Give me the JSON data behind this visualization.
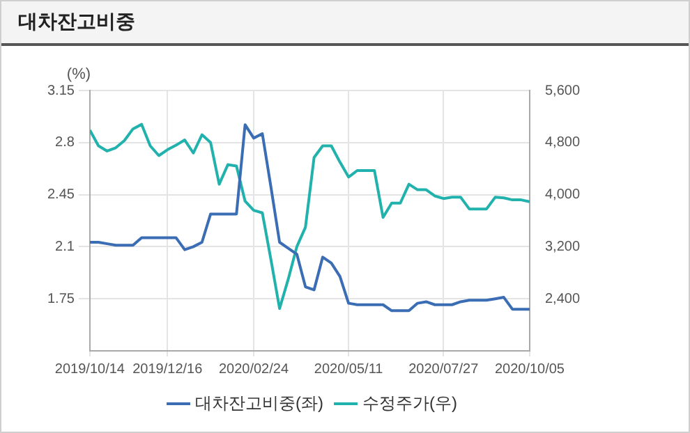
{
  "chart_data": {
    "type": "line",
    "title": "대차잔고비중",
    "ylabel": "(%)",
    "x": [
      "2019-10-14",
      "2019-10-21",
      "2019-10-28",
      "2019-11-04",
      "2019-11-11",
      "2019-11-18",
      "2019-11-25",
      "2019-12-02",
      "2019-12-09",
      "2019-12-16",
      "2019-12-23",
      "2019-12-30",
      "2020-01-06",
      "2020-01-13",
      "2020-01-20",
      "2020-01-27",
      "2020-02-03",
      "2020-02-10",
      "2020-02-17",
      "2020-02-24",
      "2020-03-02",
      "2020-03-09",
      "2020-03-16",
      "2020-03-23",
      "2020-03-30",
      "2020-04-06",
      "2020-04-13",
      "2020-04-20",
      "2020-04-27",
      "2020-05-04",
      "2020-05-11",
      "2020-05-18",
      "2020-05-25",
      "2020-06-01",
      "2020-06-08",
      "2020-06-15",
      "2020-06-22",
      "2020-06-29",
      "2020-07-06",
      "2020-07-13",
      "2020-07-20",
      "2020-07-27",
      "2020-08-03",
      "2020-08-10",
      "2020-08-17",
      "2020-08-24",
      "2020-08-31",
      "2020-09-07",
      "2020-09-14",
      "2020-09-21",
      "2020-09-28",
      "2020-10-05"
    ],
    "series": [
      {
        "name": "대차잔고비중(좌)",
        "color": "#3a6db4",
        "values": [
          2.13,
          2.13,
          2.12,
          2.11,
          2.11,
          2.11,
          2.16,
          2.16,
          2.16,
          2.16,
          2.16,
          2.08,
          2.1,
          2.13,
          2.32,
          2.32,
          2.32,
          2.32,
          2.92,
          2.83,
          2.86,
          2.5,
          2.13,
          2.09,
          2.05,
          1.83,
          1.81,
          2.03,
          1.99,
          1.9,
          1.72,
          1.71,
          1.71,
          1.71,
          1.71,
          1.67,
          1.67,
          1.67,
          1.72,
          1.73,
          1.71,
          1.71,
          1.71,
          1.73,
          1.74,
          1.74,
          1.74,
          1.75,
          1.76,
          1.68,
          1.68,
          1.68
        ]
      },
      {
        "name": "수정주가(우)",
        "color": "#22b2ad",
        "axis": "y2",
        "values": [
          4990,
          4750,
          4670,
          4720,
          4830,
          5010,
          5080,
          4750,
          4600,
          4690,
          4760,
          4840,
          4640,
          4920,
          4800,
          4160,
          4460,
          4440,
          3900,
          3760,
          3720,
          3000,
          2250,
          2700,
          3200,
          3500,
          4570,
          4750,
          4750,
          4500,
          4270,
          4370,
          4370,
          4370,
          3650,
          3870,
          3870,
          4160,
          4075,
          4075,
          3980,
          3940,
          3960,
          3960,
          3780,
          3780,
          3780,
          3960,
          3950,
          3920,
          3920,
          3890
        ]
      }
    ],
    "xlim": [
      "2019-10-14",
      "2020-10-05"
    ],
    "xticks": [
      {
        "value": "2019-10-14",
        "label": "2019/10/14"
      },
      {
        "value": "2019-12-16",
        "label": "2019/12/16"
      },
      {
        "value": "2020-02-24",
        "label": "2020/02/24"
      },
      {
        "value": "2020-05-11",
        "label": "2020/05/11"
      },
      {
        "value": "2020-07-27",
        "label": "2020/07/27"
      },
      {
        "value": "2020-10-05",
        "label": "2020/10/05"
      }
    ],
    "ylim": [
      1.4,
      3.15
    ],
    "yticks": [
      1.75,
      2.1,
      2.45,
      2.8,
      3.15
    ],
    "y2lim": [
      1600,
      5600
    ],
    "y2ticks": [
      {
        "value": 2400,
        "label": "2,400"
      },
      {
        "value": 3200,
        "label": "3,200"
      },
      {
        "value": 4000,
        "label": "4,000"
      },
      {
        "value": 4800,
        "label": "4,800"
      },
      {
        "value": 5600,
        "label": "5,600"
      }
    ],
    "grid": true,
    "legend": "bottom",
    "marker": "none",
    "line_style": "solid"
  }
}
